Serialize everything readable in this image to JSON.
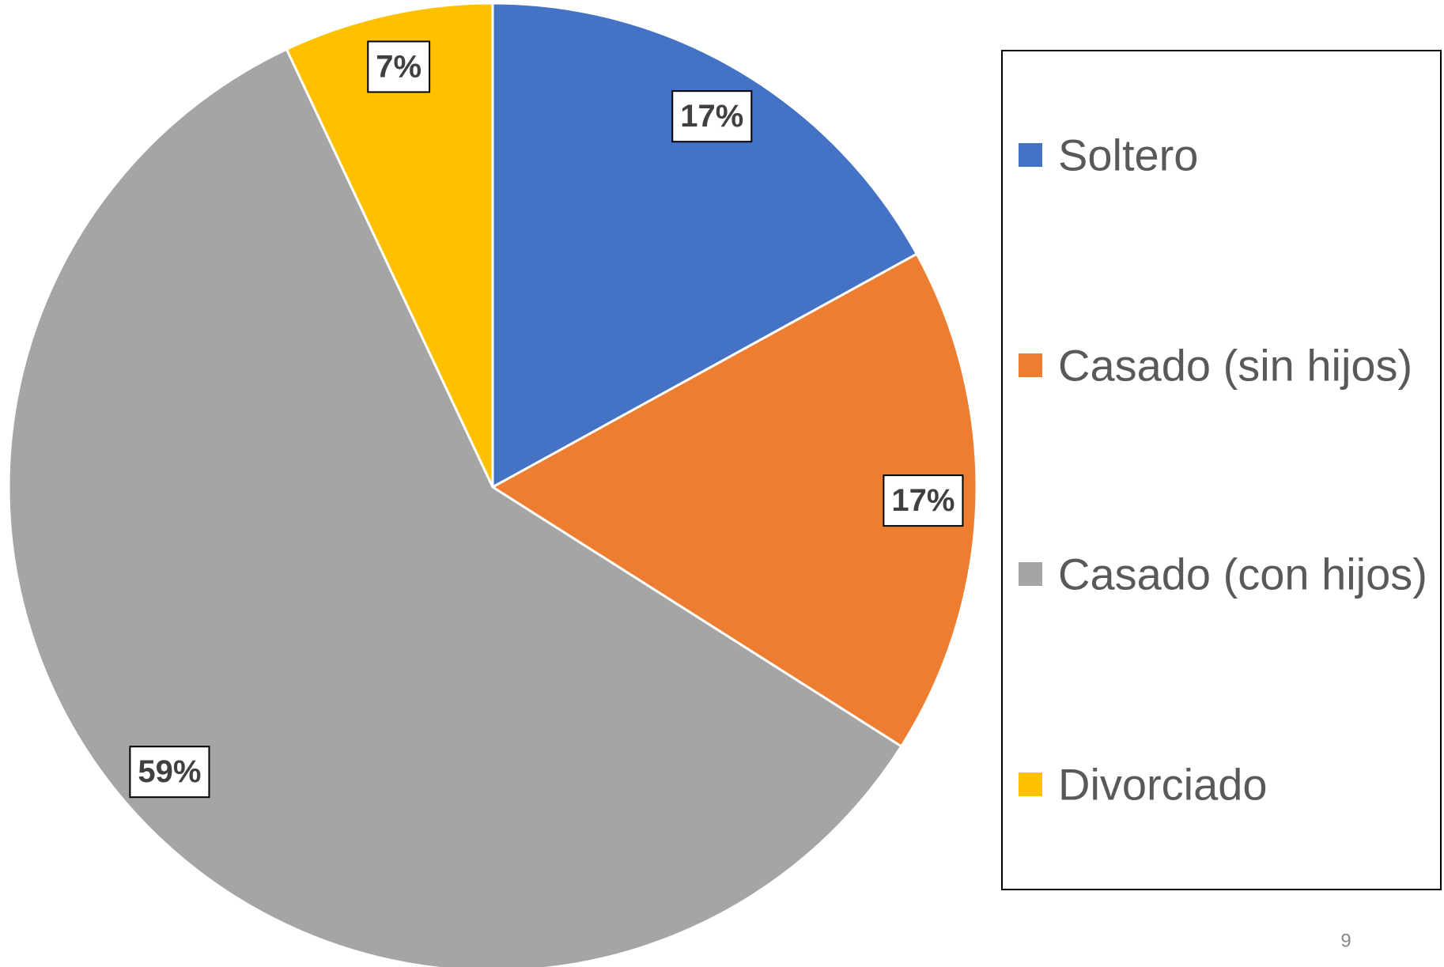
{
  "chart_data": {
    "type": "pie",
    "categories": [
      "Soltero",
      "Casado (sin hijos)",
      "Casado (con hijos)",
      "Divorciado"
    ],
    "values": [
      17,
      17,
      59,
      7
    ],
    "value_labels": [
      "17%",
      "17%",
      "59%",
      "7%"
    ],
    "colors": [
      "#4472c4",
      "#ed7d31",
      "#a5a5a5",
      "#ffc000"
    ],
    "legend": "right"
  },
  "page_number": "9"
}
